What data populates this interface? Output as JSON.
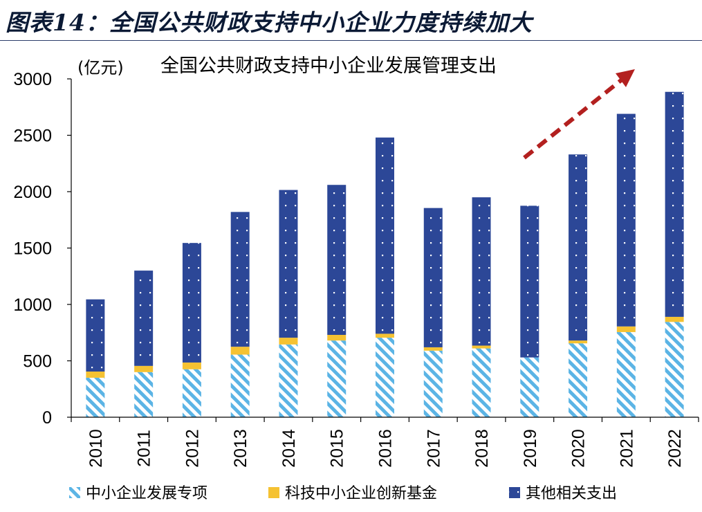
{
  "figure_title": "图表14：全国公共财政支持中小企业力度持续加大",
  "chart_data": {
    "type": "bar",
    "stacked": true,
    "title": "全国公共财政支持中小企业发展管理支出",
    "unit": "(亿元)",
    "categories": [
      "2010",
      "2011",
      "2012",
      "2013",
      "2014",
      "2015",
      "2016",
      "2017",
      "2018",
      "2019",
      "2020",
      "2021",
      "2022"
    ],
    "ylim": [
      0,
      3000
    ],
    "yticks": [
      0,
      500,
      1000,
      1500,
      2000,
      2500,
      3000
    ],
    "legend_position": "bottom",
    "grid": false,
    "series": [
      {
        "name": "中小企业发展专项",
        "color": "#5bb4e5",
        "pattern": "diagonal-stripes",
        "values": [
          350,
          400,
          425,
          555,
          645,
          680,
          705,
          590,
          610,
          530,
          655,
          755,
          845
        ]
      },
      {
        "name": "科技中小企业创新基金",
        "color": "#f5c232",
        "values": [
          55,
          55,
          60,
          70,
          60,
          50,
          35,
          30,
          25,
          0,
          25,
          50,
          45
        ]
      },
      {
        "name": "其他相关支出",
        "color": "#2c4797",
        "pattern": "white-dots",
        "values": [
          640,
          845,
          1060,
          1195,
          1310,
          1330,
          1740,
          1235,
          1315,
          1345,
          1650,
          1885,
          1995
        ]
      }
    ],
    "annotation": "upward-trend-arrow"
  }
}
